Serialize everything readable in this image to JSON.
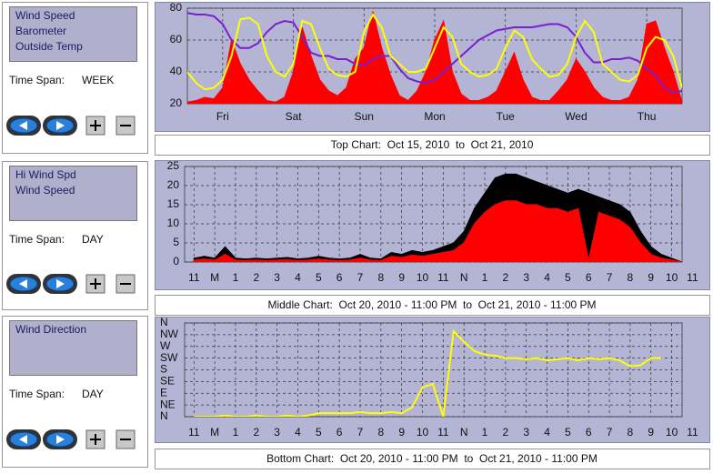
{
  "panels": [
    {
      "list": [
        "Wind Speed",
        "Barometer",
        "Outside Temp"
      ],
      "time_span_label": "Time Span:",
      "time_span": "WEEK"
    },
    {
      "list": [
        "Hi Wind Spd",
        "Wind Speed"
      ],
      "time_span_label": "Time Span:",
      "time_span": "DAY"
    },
    {
      "list": [
        "Wind Direction"
      ],
      "time_span_label": "Time Span:",
      "time_span": "DAY"
    }
  ],
  "chart_data": [
    {
      "type": "line",
      "caption": "Top Chart:  Oct 15, 2010  to  Oct 21, 2010",
      "x": [
        0,
        3,
        6,
        9,
        12,
        15,
        18,
        21,
        24,
        27,
        30,
        33,
        36,
        39,
        42,
        45,
        48,
        51,
        54,
        57,
        60,
        63,
        66,
        69,
        72,
        75,
        78,
        81,
        84,
        87,
        90,
        93,
        96,
        99,
        102,
        105,
        108,
        111,
        114,
        117,
        120,
        123,
        126,
        129,
        132,
        135,
        138,
        141,
        144,
        147,
        150,
        153,
        156,
        159,
        162,
        165,
        168
      ],
      "xlim": [
        0,
        168
      ],
      "xticks": [
        {
          "value": 12,
          "label": "Fri"
        },
        {
          "value": 36,
          "label": "Sat"
        },
        {
          "value": 60,
          "label": "Sun"
        },
        {
          "value": 84,
          "label": "Mon"
        },
        {
          "value": 108,
          "label": "Tue"
        },
        {
          "value": 132,
          "label": "Wed"
        },
        {
          "value": 156,
          "label": "Thu"
        }
      ],
      "ylim": [
        20,
        80
      ],
      "yticks": [
        20,
        40,
        60,
        80
      ],
      "grid": true,
      "series": [
        {
          "name": "Wind Speed",
          "color": "#ff0000",
          "kind": "area",
          "values": [
            21,
            22,
            24,
            23,
            30,
            60,
            45,
            35,
            28,
            22,
            21,
            24,
            40,
            68,
            50,
            35,
            28,
            25,
            30,
            48,
            55,
            78,
            55,
            38,
            25,
            22,
            28,
            40,
            60,
            72,
            40,
            26,
            22,
            22,
            24,
            28,
            40,
            52,
            35,
            24,
            22,
            22,
            28,
            35,
            48,
            40,
            30,
            24,
            22,
            22,
            24,
            35,
            70,
            72,
            55,
            40,
            21
          ]
        },
        {
          "name": "Barometer",
          "color": "#7a1fd0",
          "kind": "line",
          "values": [
            77,
            76,
            76,
            75,
            70,
            60,
            55,
            55,
            58,
            65,
            70,
            72,
            71,
            62,
            52,
            50,
            50,
            48,
            48,
            45,
            44,
            48,
            50,
            50,
            42,
            36,
            34,
            33,
            35,
            40,
            45,
            50,
            55,
            60,
            63,
            66,
            67,
            68,
            68,
            68,
            69,
            70,
            70,
            68,
            62,
            52,
            46,
            46,
            48,
            48,
            49,
            47,
            42,
            38,
            30,
            27,
            28
          ]
        },
        {
          "name": "Outside Temp",
          "color": "#ffff00",
          "kind": "line",
          "values": [
            40,
            33,
            29,
            30,
            35,
            50,
            73,
            74,
            70,
            50,
            40,
            37,
            45,
            72,
            70,
            55,
            42,
            38,
            37,
            40,
            65,
            76,
            68,
            50,
            45,
            40,
            40,
            42,
            55,
            68,
            62,
            45,
            40,
            37,
            38,
            42,
            55,
            66,
            62,
            48,
            42,
            37,
            38,
            45,
            62,
            72,
            65,
            45,
            40,
            35,
            34,
            38,
            55,
            62,
            60,
            50,
            30
          ]
        }
      ]
    },
    {
      "type": "area",
      "caption": "Middle Chart:  Oct 20, 2010 - 11:00 PM  to  Oct 21, 2010 - 11:00 PM",
      "x": [
        0,
        0.5,
        1,
        1.5,
        2,
        2.5,
        3,
        3.5,
        4,
        4.5,
        5,
        5.5,
        6,
        6.5,
        7,
        7.5,
        8,
        8.5,
        9,
        9.5,
        10,
        10.5,
        11,
        11.5,
        12,
        12.5,
        13,
        13.5,
        14,
        14.5,
        15,
        15.5,
        16,
        16.5,
        17,
        17.5,
        18,
        18.5,
        19,
        19.5,
        20,
        20.5,
        21,
        21.5,
        22,
        22.5,
        23,
        23.5
      ],
      "xlim": [
        -0.45,
        23.5
      ],
      "xticks": [
        {
          "value": 0,
          "label": "11"
        },
        {
          "value": 1,
          "label": "M"
        },
        {
          "value": 2,
          "label": "1"
        },
        {
          "value": 3,
          "label": "2"
        },
        {
          "value": 4,
          "label": "3"
        },
        {
          "value": 5,
          "label": "4"
        },
        {
          "value": 6,
          "label": "5"
        },
        {
          "value": 7,
          "label": "6"
        },
        {
          "value": 8,
          "label": "7"
        },
        {
          "value": 9,
          "label": "8"
        },
        {
          "value": 10,
          "label": "9"
        },
        {
          "value": 11,
          "label": "10"
        },
        {
          "value": 12,
          "label": "11"
        },
        {
          "value": 13,
          "label": "N"
        },
        {
          "value": 14,
          "label": "1"
        },
        {
          "value": 15,
          "label": "2"
        },
        {
          "value": 16,
          "label": "3"
        },
        {
          "value": 17,
          "label": "4"
        },
        {
          "value": 18,
          "label": "5"
        },
        {
          "value": 19,
          "label": "6"
        },
        {
          "value": 20,
          "label": "7"
        },
        {
          "value": 21,
          "label": "8"
        },
        {
          "value": 22,
          "label": "9"
        },
        {
          "value": 23,
          "label": "10"
        },
        {
          "value": 24,
          "label": "11"
        }
      ],
      "ylim": [
        0,
        25
      ],
      "yticks": [
        0,
        5,
        10,
        15,
        20,
        25
      ],
      "grid": true,
      "series": [
        {
          "name": "Hi Wind Spd",
          "color": "#000000",
          "values": [
            1,
            1.5,
            1,
            4,
            1,
            0.8,
            1,
            0.8,
            1,
            1.2,
            0.8,
            1,
            1.5,
            1,
            0.8,
            1,
            2,
            1,
            0.8,
            2.5,
            2,
            3,
            2.5,
            3,
            4,
            5,
            8,
            14,
            18,
            22,
            23,
            23,
            22,
            21,
            20,
            19,
            18,
            19,
            18,
            17,
            16,
            15,
            13,
            8,
            4,
            2,
            1,
            0
          ]
        },
        {
          "name": "Wind Speed",
          "color": "#ff0000",
          "values": [
            0.5,
            0.8,
            0.5,
            2,
            0.5,
            0.4,
            0.5,
            0.4,
            0.5,
            0.6,
            0.4,
            0.5,
            0.8,
            0.5,
            0.4,
            0.5,
            1,
            0.5,
            0.4,
            1.5,
            1.2,
            1.8,
            1.5,
            2,
            2.5,
            3,
            5,
            10,
            13,
            15,
            16,
            16,
            15,
            15,
            14,
            14,
            13,
            14,
            0.5,
            13,
            12,
            11,
            9,
            5,
            2,
            1,
            0.5,
            0
          ]
        }
      ]
    },
    {
      "type": "line",
      "caption": "Bottom Chart:  Oct 20, 2010 - 11:00 PM  to  Oct 21, 2010 - 11:00 PM",
      "x": [
        0,
        0.5,
        1,
        1.5,
        2,
        2.5,
        3,
        3.5,
        4,
        4.5,
        5,
        5.5,
        6,
        6.5,
        7,
        7.5,
        8,
        8.5,
        9,
        9.5,
        10,
        10.5,
        11,
        11.5,
        12,
        12.5,
        13,
        13.5,
        14,
        14.5,
        15,
        15.5,
        16,
        16.5,
        17,
        17.5,
        18,
        18.5,
        19,
        19.5,
        20,
        20.5,
        21,
        21.5,
        22,
        22.5,
        23,
        23.5
      ],
      "xlim": [
        -0.45,
        23.5
      ],
      "xticks": [
        {
          "value": 0,
          "label": "11"
        },
        {
          "value": 1,
          "label": "M"
        },
        {
          "value": 2,
          "label": "1"
        },
        {
          "value": 3,
          "label": "2"
        },
        {
          "value": 4,
          "label": "3"
        },
        {
          "value": 5,
          "label": "4"
        },
        {
          "value": 6,
          "label": "5"
        },
        {
          "value": 7,
          "label": "6"
        },
        {
          "value": 8,
          "label": "7"
        },
        {
          "value": 9,
          "label": "8"
        },
        {
          "value": 10,
          "label": "9"
        },
        {
          "value": 11,
          "label": "10"
        },
        {
          "value": 12,
          "label": "11"
        },
        {
          "value": 13,
          "label": "N"
        },
        {
          "value": 14,
          "label": "1"
        },
        {
          "value": 15,
          "label": "2"
        },
        {
          "value": 16,
          "label": "3"
        },
        {
          "value": 17,
          "label": "4"
        },
        {
          "value": 18,
          "label": "5"
        },
        {
          "value": 19,
          "label": "6"
        },
        {
          "value": 20,
          "label": "7"
        },
        {
          "value": 21,
          "label": "8"
        },
        {
          "value": 22,
          "label": "9"
        },
        {
          "value": 23,
          "label": "10"
        },
        {
          "value": 24,
          "label": "11"
        }
      ],
      "ylim": [
        0,
        8
      ],
      "yticks": [
        {
          "value": 0,
          "label": "N"
        },
        {
          "value": 1,
          "label": "NE"
        },
        {
          "value": 2,
          "label": "E"
        },
        {
          "value": 3,
          "label": "SE"
        },
        {
          "value": 4,
          "label": "S"
        },
        {
          "value": 5,
          "label": "SW"
        },
        {
          "value": 6,
          "label": "W"
        },
        {
          "value": 7,
          "label": "NW"
        },
        {
          "value": 8,
          "label": "N"
        }
      ],
      "grid": true,
      "series": [
        {
          "name": "Wind Direction",
          "color": "#ffff00",
          "values": [
            0,
            0,
            0,
            0.1,
            0,
            0,
            0.1,
            0,
            0,
            0.1,
            0,
            0.1,
            0.3,
            0.3,
            0.3,
            0.3,
            0.4,
            0.3,
            0.3,
            0.4,
            0.3,
            0.8,
            2.5,
            2.8,
            0,
            7.3,
            6.4,
            5.6,
            5.3,
            5.2,
            5,
            5,
            4.9,
            5,
            4.8,
            4.9,
            5,
            4.8,
            5,
            4.9,
            5,
            4.8,
            4.3,
            4.4,
            5,
            5,
            null,
            null
          ]
        }
      ]
    }
  ]
}
